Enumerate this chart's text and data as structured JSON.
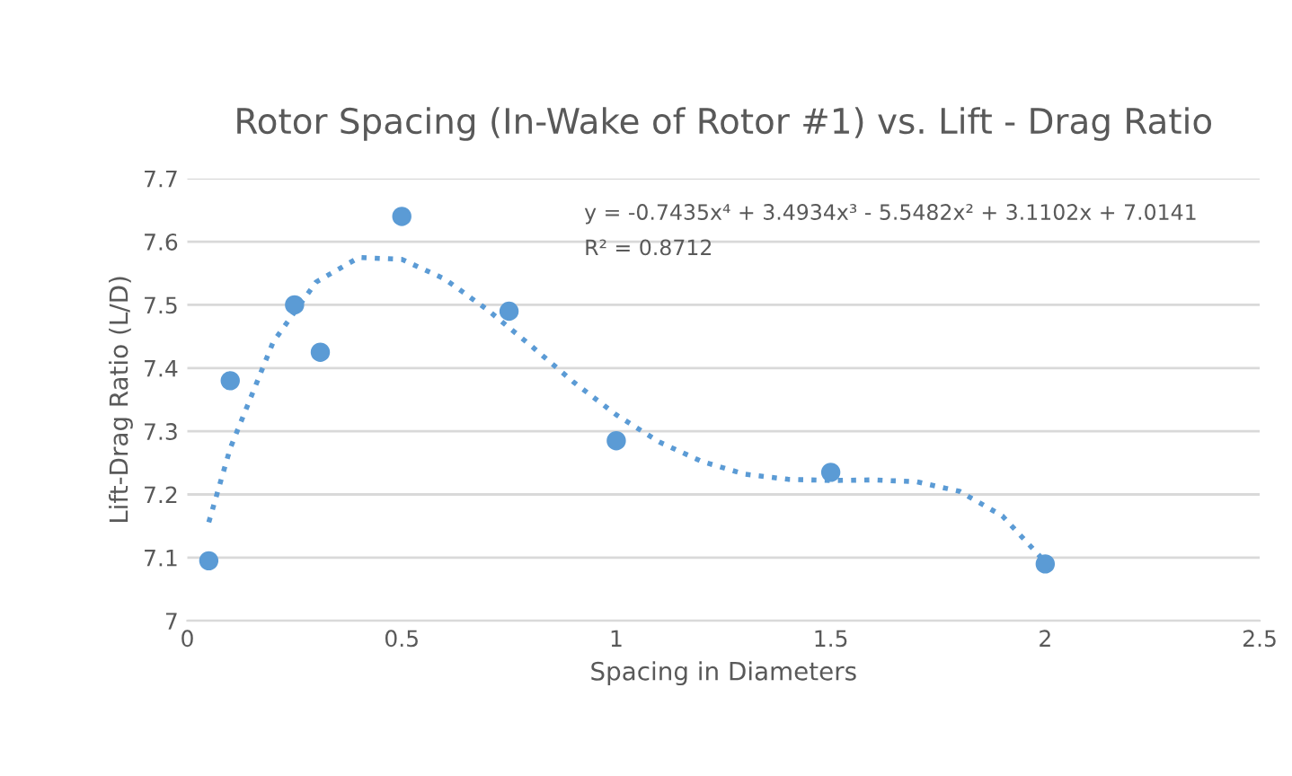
{
  "chart_data": {
    "type": "scatter",
    "title": "Rotor Spacing (In-Wake of Rotor #1) vs. Lift - Drag Ratio",
    "xlabel": "Spacing in Diameters",
    "ylabel": "Lift-Drag Ratio (L/D)",
    "series": [
      {
        "color": "#5b9bd5",
        "marker": "circle",
        "x": [
          0.05,
          0.1,
          0.25,
          0.31,
          0.5,
          0.75,
          1,
          1.5,
          2
        ],
        "values": [
          7.095,
          7.38,
          7.5,
          7.425,
          7.64,
          7.49,
          7.285,
          7.235,
          7.09
        ]
      },
      {
        "type": "line",
        "color": "#5b9bd5",
        "line_style": "dotted",
        "x": [
          0.05,
          0.1,
          0.2,
          0.3,
          0.4,
          0.5,
          0.6,
          0.7,
          0.8,
          0.9,
          1.0,
          1.1,
          1.2,
          1.3,
          1.4,
          1.5,
          1.6,
          1.7,
          1.8,
          1.9,
          2.0
        ],
        "values": [
          7.156,
          7.273,
          7.441,
          7.536,
          7.575,
          7.572,
          7.541,
          7.492,
          7.436,
          7.378,
          7.326,
          7.283,
          7.252,
          7.232,
          7.224,
          7.222,
          7.223,
          7.22,
          7.205,
          7.166,
          7.093
        ]
      }
    ],
    "annotations": [
      "y = -0.7435x⁴ + 3.4934x³ - 5.5482x² + 3.1102x + 7.0141",
      "R² = 0.8712"
    ],
    "xlim": [
      0,
      2.5
    ],
    "xticks": [
      0,
      0.5,
      1,
      1.5,
      2,
      2.5
    ],
    "ylim": [
      7,
      7.7
    ],
    "yticks": [
      7,
      7.1,
      7.2,
      7.3,
      7.4,
      7.5,
      7.6,
      7.7
    ],
    "grid": "y",
    "legend": false
  }
}
